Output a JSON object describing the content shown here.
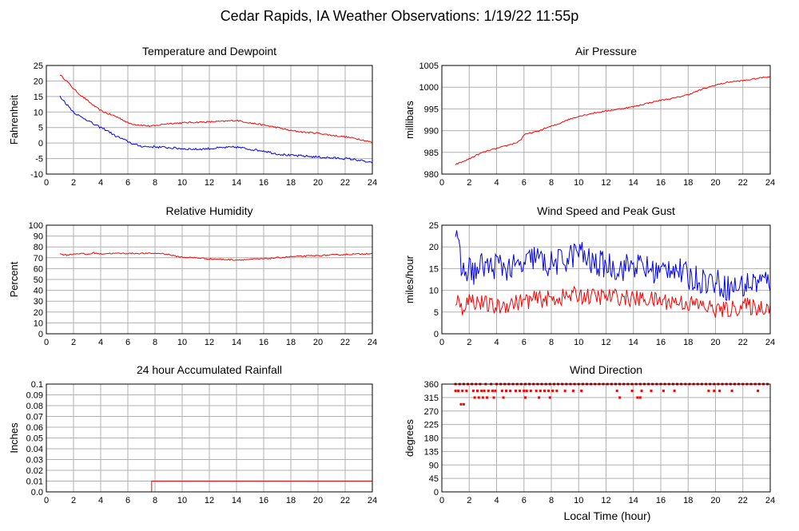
{
  "page_title": "Cedar Rapids, IA Weather Observations: 1/19/22 11:55p",
  "x_axis_label": "Local Time (hour)",
  "colors": {
    "series_red": "#ff0000",
    "series_blue": "#0000ff",
    "grid": "#b0b0b0",
    "frame": "#000000"
  },
  "chart_data": [
    {
      "id": "temp",
      "type": "line",
      "title": "Temperature and Dewpoint",
      "ylabel": "Fahrenheit",
      "xlabel": "",
      "xlim": [
        0,
        24
      ],
      "ylim": [
        -10,
        25
      ],
      "xticks": [
        2,
        4,
        6,
        8,
        10,
        12,
        14,
        16,
        18,
        20,
        22,
        24
      ],
      "yticks": [
        -10,
        -5,
        0,
        5,
        10,
        15,
        20,
        25
      ],
      "grid": true,
      "series": [
        {
          "color": "#ff0000",
          "jitter": 0.25,
          "x": [
            1.0,
            1.5,
            2.0,
            2.5,
            3.0,
            3.5,
            4.0,
            4.5,
            5.0,
            5.5,
            6.0,
            6.5,
            7.0,
            7.5,
            8.0,
            8.5,
            9.0,
            10.0,
            11.0,
            12.0,
            13.0,
            14.0,
            15.0,
            16.0,
            17.0,
            18.0,
            19.0,
            20.0,
            21.0,
            22.0,
            23.0,
            24.0
          ],
          "y": [
            22,
            20,
            17.5,
            15.5,
            13.8,
            12,
            10.5,
            9.5,
            8.8,
            7.8,
            6.5,
            6,
            5.8,
            5.5,
            5.5,
            6,
            6.3,
            6.5,
            6.7,
            6.8,
            7,
            7.3,
            6.5,
            5.8,
            5,
            4,
            3.5,
            3.2,
            2.5,
            2,
            1.3,
            0.2
          ]
        },
        {
          "color": "#0000ff",
          "jitter": 0.35,
          "x": [
            1.0,
            1.5,
            2.0,
            2.5,
            3.0,
            3.5,
            4.0,
            4.5,
            5.0,
            5.5,
            6.0,
            6.5,
            7.0,
            7.5,
            8.0,
            9.0,
            10.0,
            11.0,
            12.0,
            13.0,
            14.0,
            15.0,
            16.0,
            17.0,
            18.0,
            19.0,
            20.0,
            21.0,
            22.0,
            23.0,
            24.0
          ],
          "y": [
            15,
            12.5,
            10,
            8.5,
            7.5,
            6,
            5,
            4,
            2.5,
            1.5,
            0.5,
            -0.5,
            -1,
            -1.2,
            -1.2,
            -1.5,
            -1.8,
            -2,
            -1.8,
            -1.5,
            -1.3,
            -2,
            -2.5,
            -3.5,
            -4,
            -4.2,
            -4.5,
            -4.8,
            -5,
            -5.5,
            -6.5
          ]
        }
      ]
    },
    {
      "id": "pressure",
      "type": "line",
      "title": "Air Pressure",
      "ylabel": "millibars",
      "xlabel": "",
      "xlim": [
        0,
        24
      ],
      "ylim": [
        980,
        1005
      ],
      "xticks": [
        2,
        4,
        6,
        8,
        10,
        12,
        14,
        16,
        18,
        20,
        22,
        24
      ],
      "yticks": [
        980,
        985,
        990,
        995,
        1000,
        1005
      ],
      "grid": true,
      "series": [
        {
          "color": "#ff0000",
          "jitter": 0.15,
          "x": [
            1.0,
            1.5,
            2.0,
            2.5,
            3.0,
            3.5,
            4.0,
            4.5,
            5.0,
            5.5,
            5.8,
            6.0,
            6.5,
            7.0,
            7.5,
            8.0,
            8.5,
            9.0,
            10.0,
            11.0,
            12.0,
            13.0,
            14.0,
            15.0,
            16.0,
            17.0,
            18.0,
            19.0,
            20.0,
            21.0,
            22.0,
            23.0,
            24.0
          ],
          "y": [
            982.2,
            982.8,
            983.5,
            984.3,
            985,
            985.5,
            985.9,
            986.3,
            986.8,
            987.3,
            988,
            989,
            989.5,
            989.8,
            990.5,
            991,
            991.5,
            992.3,
            993.3,
            994,
            994.5,
            995,
            995.5,
            996.3,
            997,
            997.5,
            998.3,
            999.5,
            1000.5,
            1001.2,
            1001.5,
            1002,
            1002.5
          ]
        }
      ]
    },
    {
      "id": "humidity",
      "type": "line",
      "title": "Relative Humidity",
      "ylabel": "Percent",
      "xlabel": "",
      "xlim": [
        0,
        24
      ],
      "ylim": [
        0,
        100
      ],
      "xticks": [
        2,
        4,
        6,
        8,
        10,
        12,
        14,
        16,
        18,
        20,
        22,
        24
      ],
      "yticks": [
        0,
        10,
        20,
        30,
        40,
        50,
        60,
        70,
        80,
        90,
        100
      ],
      "grid": true,
      "series": [
        {
          "color": "#ff0000",
          "jitter": 0.6,
          "x": [
            1.0,
            1.5,
            2.0,
            2.5,
            3.0,
            3.5,
            4.0,
            4.5,
            5.0,
            6.0,
            7.0,
            8.0,
            8.5,
            9.0,
            9.5,
            10.0,
            11.0,
            12.0,
            13.0,
            14.0,
            15.0,
            16.0,
            17.0,
            18.0,
            19.0,
            20.0,
            21.0,
            22.0,
            23.0,
            24.0
          ],
          "y": [
            73.5,
            72.5,
            73.5,
            74,
            73,
            74.5,
            73.5,
            74,
            74,
            74,
            74,
            74,
            74,
            73,
            71.5,
            70.5,
            70,
            69,
            68.5,
            68,
            68.5,
            69,
            70,
            71,
            71.5,
            72,
            72.5,
            73,
            73.5,
            74
          ]
        }
      ]
    },
    {
      "id": "wind",
      "type": "line",
      "title": "Wind Speed and Peak Gust",
      "ylabel": "miles/hour",
      "xlabel": "",
      "xlim": [
        0,
        24
      ],
      "ylim": [
        0,
        25
      ],
      "xticks": [
        2,
        4,
        6,
        8,
        10,
        12,
        14,
        16,
        18,
        20,
        22,
        24
      ],
      "yticks": [
        0,
        5,
        10,
        15,
        20,
        25
      ],
      "grid": true,
      "series": [
        {
          "color": "#0000ff",
          "jitter": 3.2,
          "x": [
            1.0,
            1.5,
            2.0,
            2.5,
            3.0,
            3.5,
            4.0,
            5.0,
            6.0,
            6.8,
            7.5,
            8.0,
            9.0,
            10.0,
            11.0,
            12.0,
            13.0,
            14.0,
            15.0,
            16.0,
            16.8,
            17.5,
            18.0,
            19.0,
            20.0,
            21.0,
            22.0,
            23.0,
            24.0
          ],
          "y": [
            23,
            14,
            15,
            14,
            16,
            15,
            16,
            15,
            15.5,
            18,
            16,
            16,
            17,
            19,
            16,
            16,
            15,
            16,
            15,
            14,
            16,
            14,
            13,
            12.5,
            12,
            10.5,
            11,
            12,
            12
          ]
        },
        {
          "color": "#ff0000",
          "jitter": 2.0,
          "x": [
            1.0,
            1.5,
            2.0,
            3.0,
            4.0,
            5.0,
            6.0,
            7.0,
            8.0,
            9.0,
            10.0,
            11.0,
            12.0,
            13.0,
            14.0,
            15.0,
            16.0,
            17.0,
            18.0,
            19.0,
            20.0,
            21.0,
            22.0,
            23.0,
            24.0
          ],
          "y": [
            8,
            6,
            8,
            7,
            6,
            7,
            7.5,
            8,
            8,
            8.5,
            9,
            8.5,
            8.5,
            8.5,
            8,
            8,
            7.5,
            7.5,
            7,
            6.5,
            5.5,
            5.5,
            6.5,
            6,
            6.5
          ]
        }
      ]
    },
    {
      "id": "rain",
      "type": "line",
      "title": "24 hour Accumulated Rainfall",
      "ylabel": "Inches",
      "xlabel": "",
      "xlim": [
        0,
        24
      ],
      "ylim": [
        0,
        0.1
      ],
      "xticks": [
        2,
        4,
        6,
        8,
        10,
        12,
        14,
        16,
        18,
        20,
        22,
        24
      ],
      "yticks": [
        0.0,
        0.01,
        0.02,
        0.03,
        0.04,
        0.05,
        0.06,
        0.07,
        0.08,
        0.09,
        0.1
      ],
      "ytick_labels": [
        "0.0",
        "0.01",
        "0.02",
        "0.03",
        "0.04",
        "0.05",
        "0.06",
        "0.07",
        "0.08",
        "0.09",
        "0.1"
      ],
      "grid": true,
      "series": [
        {
          "color": "#ff0000",
          "jitter": 0,
          "x": [
            1.0,
            7.75,
            7.75,
            24.0
          ],
          "y": [
            0.0,
            0.0,
            0.01,
            0.01
          ]
        }
      ]
    },
    {
      "id": "direction",
      "type": "scatter",
      "title": "Wind Direction",
      "ylabel": "degrees",
      "xlabel": "Local Time (hour)",
      "xlim": [
        0,
        24
      ],
      "ylim": [
        0,
        360
      ],
      "xticks": [
        2,
        4,
        6,
        8,
        10,
        12,
        14,
        16,
        18,
        20,
        22,
        24
      ],
      "yticks": [
        0,
        45,
        90,
        135,
        180,
        225,
        270,
        315,
        360
      ],
      "grid": true,
      "points": {
        "color": "#ff0000",
        "levels": [
          {
            "y": 360,
            "x": [
              1.0,
              1.3,
              1.6,
              1.9,
              2.2,
              2.5,
              2.8,
              3.2,
              3.6,
              4.0,
              4.3,
              4.6,
              4.9,
              5.2,
              5.5,
              5.8,
              6.1,
              6.4,
              6.7,
              7.0,
              7.3,
              7.6,
              7.9,
              8.2,
              8.5,
              8.8,
              9.1,
              9.4,
              9.7,
              10.0,
              10.3,
              10.6,
              10.9,
              11.2,
              11.5,
              11.8,
              12.1,
              12.4,
              12.7,
              13.0,
              13.3,
              13.6,
              13.9,
              14.2,
              14.5,
              14.8,
              15.1,
              15.4,
              15.7,
              16.0,
              16.3,
              16.6,
              16.9,
              17.2,
              17.5,
              17.8,
              18.1,
              18.4,
              18.7,
              19.0,
              19.3,
              19.6,
              19.9,
              20.2,
              20.5,
              20.8,
              21.1,
              21.4,
              21.7,
              22.0,
              22.3,
              22.6,
              22.9,
              23.2,
              23.5,
              23.8
            ]
          },
          {
            "y": 337.5,
            "x": [
              1.0,
              1.2,
              1.5,
              1.8,
              2.3,
              2.6,
              2.9,
              3.1,
              3.4,
              3.7,
              3.9,
              4.4,
              4.7,
              5.0,
              5.4,
              5.7,
              6.0,
              6.2,
              6.5,
              6.9,
              7.2,
              7.5,
              7.8,
              8.1,
              8.4,
              9.0,
              9.6,
              10.2,
              12.8,
              13.9,
              14.6,
              15.3,
              16.2,
              17.0,
              19.5,
              19.9,
              20.3,
              21.2,
              23.1
            ]
          },
          {
            "y": 315,
            "x": [
              2.4,
              2.7,
              3.0,
              3.3,
              3.8,
              4.5,
              6.1,
              7.1,
              7.9,
              13.0,
              14.3,
              14.5
            ]
          },
          {
            "y": 292.5,
            "x": [
              1.4,
              1.6
            ]
          }
        ]
      }
    }
  ]
}
